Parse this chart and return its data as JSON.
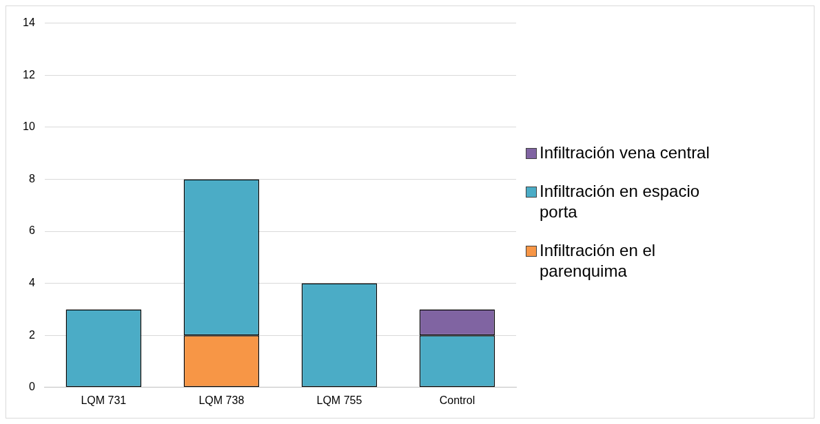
{
  "chart_data": {
    "type": "bar",
    "stacked": true,
    "categories": [
      "LQM 731",
      "LQM 738",
      "LQM 755",
      "Control"
    ],
    "series": [
      {
        "name": "Infiltración en el parenquima",
        "color": "#f79646",
        "values": [
          null,
          2,
          null,
          null
        ]
      },
      {
        "name": "Infiltración en espacio porta",
        "color": "#4bacc6",
        "values": [
          3,
          6,
          4,
          2
        ]
      },
      {
        "name": "Infiltración vena central",
        "color": "#8064a2",
        "values": [
          null,
          null,
          null,
          1
        ]
      }
    ],
    "ylim": [
      0,
      14
    ],
    "yticks": [
      0,
      2,
      4,
      6,
      8,
      10,
      12,
      14
    ],
    "grid": "y",
    "legend": "right"
  }
}
